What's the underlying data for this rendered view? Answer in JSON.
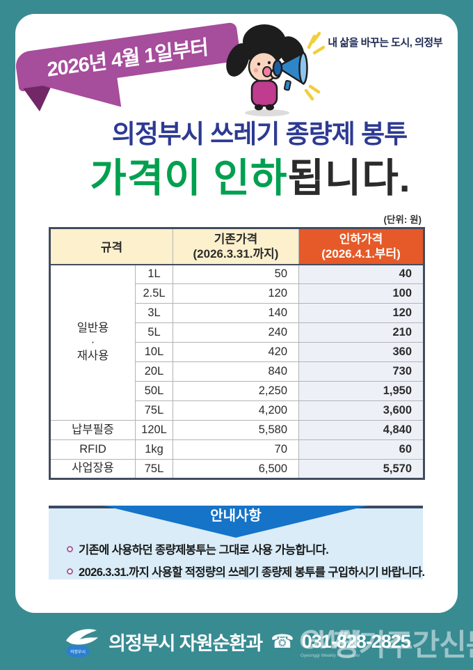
{
  "poster": {
    "badge": "2026년 4월 1일부터",
    "slogan": "내 삶을 바꾸는 도시, 의정부",
    "title_line1": "의정부시 쓰레기 종량제 봉투",
    "title_line2_highlight": "가격이 인하",
    "title_line2_rest": "됩니다.",
    "unit_note": "(단위: 원)"
  },
  "table": {
    "headers": {
      "spec": "규격",
      "old_line1": "기존가격",
      "old_line2": "(2026.3.31.까지)",
      "new_line1": "인하가격",
      "new_line2": "(2026.4.1.부터)"
    },
    "rows": [
      {
        "group": "일반용\n·\n재사용",
        "group_span": 8,
        "size": "1L",
        "old": "50",
        "new": "40"
      },
      {
        "size": "2.5L",
        "old": "120",
        "new": "100"
      },
      {
        "size": "3L",
        "old": "140",
        "new": "120"
      },
      {
        "size": "5L",
        "old": "240",
        "new": "210"
      },
      {
        "size": "10L",
        "old": "420",
        "new": "360"
      },
      {
        "size": "20L",
        "old": "840",
        "new": "730"
      },
      {
        "size": "50L",
        "old": "2,250",
        "new": "1,950"
      },
      {
        "size": "75L",
        "old": "4,200",
        "new": "3,600"
      },
      {
        "group": "납부필증",
        "group_span": 1,
        "size": "120L",
        "old": "5,580",
        "new": "4,840"
      },
      {
        "group": "RFID",
        "group_span": 1,
        "size": "1kg",
        "old": "70",
        "new": "60"
      },
      {
        "group": "사업장용",
        "group_span": 1,
        "size": "75L",
        "old": "6,500",
        "new": "5,570"
      }
    ]
  },
  "notice": {
    "title": "안내사항",
    "items": [
      "기존에 사용하던 종량제봉투는 그대로 사용 가능합니다.",
      "2026.3.31.까지 사용할 적정량의 쓰레기 종량제 봉투를 구입하시기 바랍니다."
    ]
  },
  "footer": {
    "department": "의정부시 자원순환과",
    "phone_icon": "☎",
    "phone": "031-828-2825",
    "logo_text": "의정부시"
  },
  "watermark": {
    "logo": "GWN",
    "caption": "Gyeonggi Weekly Newspaper",
    "text": "경기주간신문"
  },
  "colors": {
    "frame_teal": "#398b92",
    "ribbon_magenta": "#a64d9c",
    "ribbon_fold": "#722766",
    "title_blue": "#2d3a93",
    "title_green": "#00a050",
    "header_cream": "#fcf0cd",
    "header_orange": "#e55a28",
    "price_orange": "#d5582a",
    "price_col_bg": "#edf1f7",
    "notice_bg": "#d9ecf8",
    "notice_blue": "#1573c8"
  }
}
